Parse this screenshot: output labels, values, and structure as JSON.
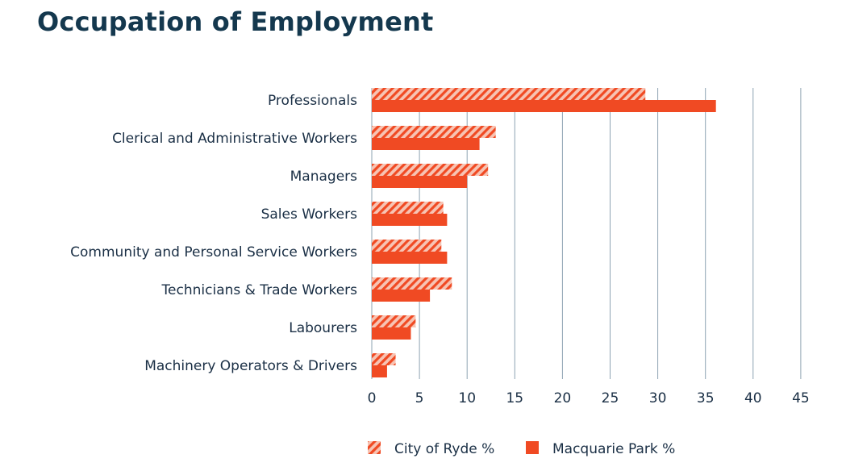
{
  "chart_data": {
    "type": "bar",
    "orientation": "horizontal",
    "title": "Occupation of Employment",
    "categories": [
      "Professionals",
      "Clerical and Administrative Workers",
      "Managers",
      "Sales Workers",
      "Community and Personal Service Workers",
      "Technicians & Trade Workers",
      "Labourers",
      "Machinery Operators & Drivers"
    ],
    "series": [
      {
        "name": "City of Ryde %",
        "values": [
          28.7,
          13.0,
          12.2,
          7.5,
          7.3,
          8.4,
          4.6,
          2.5
        ],
        "color": "#f04a23",
        "pattern": "hatched"
      },
      {
        "name": "Macquarie Park %",
        "values": [
          36.1,
          11.3,
          10.0,
          7.9,
          7.9,
          6.1,
          4.1,
          1.6
        ],
        "color": "#f04a23",
        "pattern": "solid"
      }
    ],
    "xlim": [
      0,
      45
    ],
    "x_ticks": [
      "0",
      "5",
      "10",
      "15",
      "20",
      "25",
      "30",
      "35",
      "40",
      "45"
    ],
    "grid": "vertical",
    "legend_position": "bottom"
  }
}
